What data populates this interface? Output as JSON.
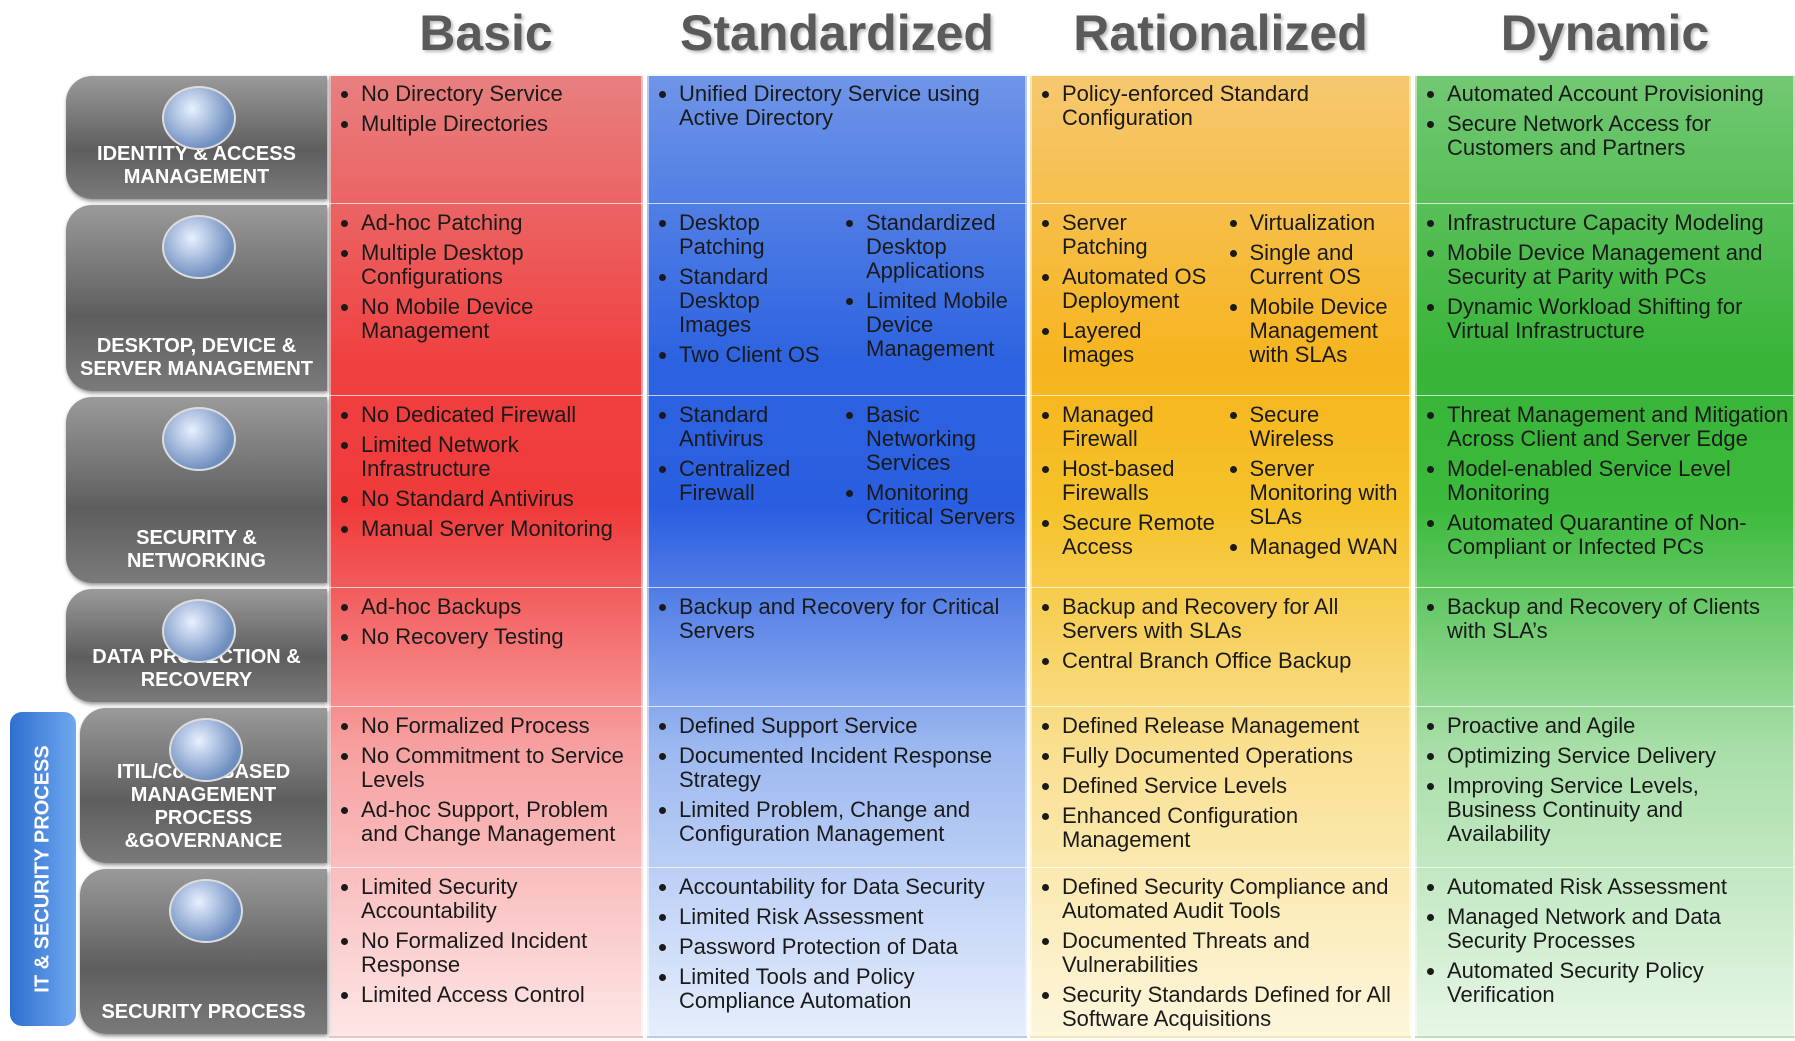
{
  "columns": [
    "Basic",
    "Standardized",
    "Rationalized",
    "Dynamic"
  ],
  "side_label": "IT & SECURITY PROCESS",
  "rows": [
    {
      "label": "IDENTITY & ACCESS MANAGEMENT",
      "cells": [
        [
          [
            "No Directory Service",
            "Multiple Directories"
          ]
        ],
        [
          [
            "Unified Directory Service using Active Directory"
          ]
        ],
        [
          [
            "Policy-enforced Standard Configuration"
          ]
        ],
        [
          [
            "Automated Account Provisioning",
            "Secure Network Access for Customers and Partners"
          ]
        ]
      ]
    },
    {
      "label": "DESKTOP, DEVICE & SERVER MANAGEMENT",
      "cells": [
        [
          [
            "Ad-hoc Patching",
            "Multiple Desktop Configurations",
            "No Mobile Device Management"
          ]
        ],
        [
          [
            "Desktop Patching",
            "Standard Desktop Images",
            "Two Client OS"
          ],
          [
            "Standardized Desktop Applications",
            "Limited Mobile Device Management"
          ]
        ],
        [
          [
            "Server Patching",
            "Automated OS Deployment",
            "Layered Images"
          ],
          [
            "Virtualization",
            "Single and Current OS",
            "Mobile Device Management with SLAs"
          ]
        ],
        [
          [
            "Infrastructure Capacity Modeling",
            "Mobile Device Management and Security at Parity with PCs",
            "Dynamic Workload Shifting for Virtual Infrastructure"
          ]
        ]
      ]
    },
    {
      "label": "SECURITY & NETWORKING",
      "cells": [
        [
          [
            "No Dedicated Firewall",
            "Limited Network Infrastructure",
            "No Standard Antivirus",
            "Manual Server Monitoring"
          ]
        ],
        [
          [
            "Standard Antivirus",
            "Centralized Firewall"
          ],
          [
            "Basic Networking Services",
            "Monitoring Critical Servers"
          ]
        ],
        [
          [
            "Managed Firewall",
            "Host-based Firewalls",
            "Secure Remote Access"
          ],
          [
            "Secure Wireless",
            "Server Monitoring with SLAs",
            "Managed WAN"
          ]
        ],
        [
          [
            "Threat Management and Mitigation Across Client and Server Edge",
            "Model-enabled Service Level Monitoring",
            "Automated Quarantine of Non-Compliant or Infected PCs"
          ]
        ]
      ]
    },
    {
      "label": "DATA PROTECTION & RECOVERY",
      "cells": [
        [
          [
            "Ad-hoc Backups",
            "No Recovery Testing"
          ]
        ],
        [
          [
            "Backup and Recovery for Critical Servers"
          ]
        ],
        [
          [
            "Backup and Recovery for All Servers with SLAs",
            "Central Branch Office Backup"
          ]
        ],
        [
          [
            "Backup and Recovery of Clients with SLA’s"
          ]
        ]
      ]
    },
    {
      "label": "ITIL/CobIT BASED MANAGEMENT PROCESS &GOVERNANCE",
      "cells": [
        [
          [
            "No Formalized Process",
            "No Commitment to Service Levels",
            "Ad-hoc Support, Problem and Change Management"
          ]
        ],
        [
          [
            "Defined Support Service",
            "Documented Incident Response Strategy",
            "Limited Problem, Change and Configuration Management"
          ]
        ],
        [
          [
            "Defined Release Management",
            "Fully Documented Operations",
            "Defined Service Levels",
            "Enhanced Configuration Management"
          ]
        ],
        [
          [
            "Proactive and Agile",
            "Optimizing Service Delivery",
            "Improving Service Levels, Business Continuity and Availability"
          ]
        ]
      ]
    },
    {
      "label": "SECURITY PROCESS",
      "cells": [
        [
          [
            "Limited Security Accountability",
            "No Formalized Incident Response",
            "Limited Access Control"
          ]
        ],
        [
          [
            "Accountability for Data Security",
            "Limited Risk Assessment",
            "Password Protection of Data",
            "Limited Tools and Policy Compliance Automation"
          ]
        ],
        [
          [
            "Defined Security Compliance and Automated Audit Tools",
            "Documented Threats and Vulnerabilities",
            "Security Standards Defined for All Software Acquisitions"
          ]
        ],
        [
          [
            "Automated Risk Assessment",
            "Managed Network and Data Security Processes",
            "Automated Security Policy Verification"
          ]
        ]
      ]
    }
  ]
}
